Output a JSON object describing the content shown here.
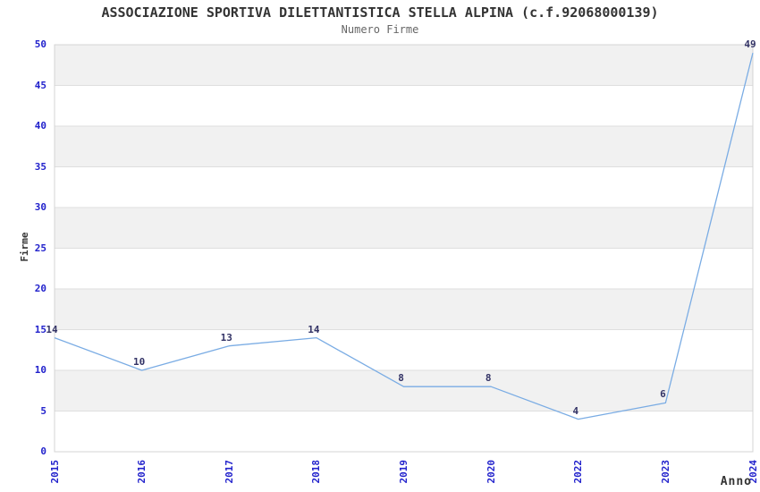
{
  "header": {
    "title": "ASSOCIAZIONE SPORTIVA DILETTANTISTICA STELLA ALPINA (c.f.92068000139)",
    "subtitle": "Numero Firme"
  },
  "chart_data": {
    "type": "line",
    "title": "ASSOCIAZIONE SPORTIVA DILETTANTISTICA STELLA ALPINA (c.f.92068000139)",
    "subtitle": "Numero Firme",
    "categories": [
      "2015",
      "2016",
      "2017",
      "2018",
      "2019",
      "2020",
      "2022",
      "2023",
      "2024"
    ],
    "series": [
      {
        "name": "Numero Firme",
        "values": [
          14,
          10,
          13,
          14,
          8,
          8,
          4,
          6,
          49
        ]
      }
    ],
    "xlabel": "Anno",
    "ylabel": "Firme",
    "ylim": [
      0,
      50
    ],
    "ytick_step": 5,
    "yticks": [
      0,
      5,
      10,
      15,
      20,
      25,
      30,
      35,
      40,
      45,
      50
    ],
    "grid": "horizontal-bands-alternating",
    "legend": "none",
    "data_labels_shown": true
  },
  "colors": {
    "background": "#ffffff",
    "line": "#7aace4",
    "tick_label": "#2222cc",
    "data_label": "#333366",
    "band": "#f1f1f1",
    "grid_line": "#dedede",
    "plot_border": "#d4d4d4",
    "title_text": "#333333",
    "subtitle_text": "#666666",
    "axis_title": "#333333"
  }
}
